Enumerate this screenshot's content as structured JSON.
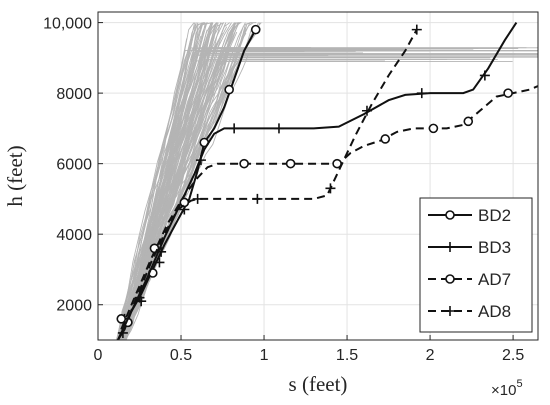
{
  "chart_data": {
    "type": "line",
    "xlabel": "s (feet)",
    "ylabel": "h (feet)",
    "x_multiplier_base": "×10",
    "x_multiplier_exponent": "5",
    "xlim": [
      0,
      2.65
    ],
    "ylim": [
      1000,
      10300
    ],
    "x_ticks": [
      0,
      0.5,
      1,
      1.5,
      2,
      2.5
    ],
    "x_tick_labels": [
      "0",
      "0.5",
      "1",
      "1.5",
      "2",
      "2.5"
    ],
    "y_ticks": [
      2000,
      4000,
      6000,
      8000,
      10000
    ],
    "y_tick_labels": [
      "2000",
      "4000",
      "6000",
      "8000",
      "10,000"
    ],
    "grid": true,
    "legend_position": "bottom-right",
    "background_trajectories_color": "#b4b4b4",
    "series_color": "#111111",
    "series": [
      {
        "name": "BD2",
        "line_style": "solid",
        "marker": "circle",
        "x": [
          0.12,
          0.16,
          0.2,
          0.26,
          0.32,
          0.4,
          0.48,
          0.55,
          0.6,
          0.64,
          0.7,
          0.76,
          0.82,
          0.88,
          0.95
        ],
        "y": [
          1000,
          1300,
          1800,
          2300,
          2900,
          3700,
          4400,
          5000,
          5800,
          6600,
          7000,
          7600,
          8400,
          9200,
          9800
        ],
        "marker_x": [
          0.18,
          0.33,
          0.64,
          0.79,
          0.95
        ],
        "marker_y": [
          1500,
          2900,
          6600,
          8100,
          9800
        ]
      },
      {
        "name": "BD3",
        "line_style": "solid",
        "marker": "plus",
        "x": [
          0.12,
          0.2,
          0.3,
          0.4,
          0.5,
          0.58,
          0.64,
          0.7,
          0.76,
          1.0,
          1.3,
          1.45,
          1.6,
          1.75,
          1.85,
          2.0,
          2.1,
          2.2,
          2.26,
          2.35,
          2.45,
          2.52
        ],
        "y": [
          1000,
          1800,
          2800,
          3900,
          4900,
          5700,
          6400,
          6850,
          7000,
          7000,
          7000,
          7050,
          7400,
          7800,
          7950,
          8000,
          8000,
          8000,
          8100,
          8700,
          9500,
          10000
        ],
        "marker_x": [
          0.16,
          0.25,
          0.37,
          0.52,
          0.62,
          0.82,
          1.09,
          1.62,
          1.95,
          2.33
        ],
        "marker_y": [
          1600,
          2200,
          3200,
          4700,
          6100,
          7000,
          7000,
          7500,
          8000,
          8500
        ]
      },
      {
        "name": "AD7",
        "line_style": "dashed",
        "marker": "circle",
        "x": [
          0.14,
          0.22,
          0.32,
          0.42,
          0.52,
          0.6,
          0.66,
          0.72,
          0.8,
          0.9,
          1.2,
          1.45,
          1.52,
          1.6,
          1.7,
          1.8,
          1.9,
          2.1,
          2.2,
          2.3,
          2.4,
          2.5,
          2.6,
          2.65
        ],
        "y": [
          1300,
          2200,
          3300,
          4300,
          5100,
          5600,
          5900,
          6000,
          6000,
          6000,
          6000,
          6000,
          6300,
          6500,
          6650,
          6900,
          7000,
          7000,
          7100,
          7500,
          7900,
          8000,
          8100,
          8200
        ],
        "marker_x": [
          0.14,
          0.34,
          0.52,
          0.88,
          1.16,
          1.44,
          1.73,
          2.02,
          2.23,
          2.47
        ],
        "marker_y": [
          1600,
          3600,
          4900,
          6000,
          6000,
          6000,
          6700,
          7000,
          7200,
          8000
        ]
      },
      {
        "name": "AD8",
        "line_style": "dashed",
        "marker": "plus",
        "x": [
          0.12,
          0.18,
          0.25,
          0.32,
          0.4,
          0.48,
          0.56,
          0.6,
          0.7,
          1.0,
          1.3,
          1.38,
          1.46,
          1.55,
          1.65,
          1.75,
          1.85,
          1.92
        ],
        "y": [
          1000,
          1600,
          2400,
          3200,
          4000,
          4700,
          4950,
          5000,
          5000,
          5000,
          5000,
          5100,
          5900,
          6800,
          7700,
          8500,
          9200,
          9800
        ],
        "marker_x": [
          0.15,
          0.26,
          0.38,
          0.6,
          0.96,
          1.4,
          1.92
        ],
        "marker_y": [
          1200,
          2100,
          3500,
          5000,
          5000,
          5300,
          9800
        ]
      }
    ]
  }
}
